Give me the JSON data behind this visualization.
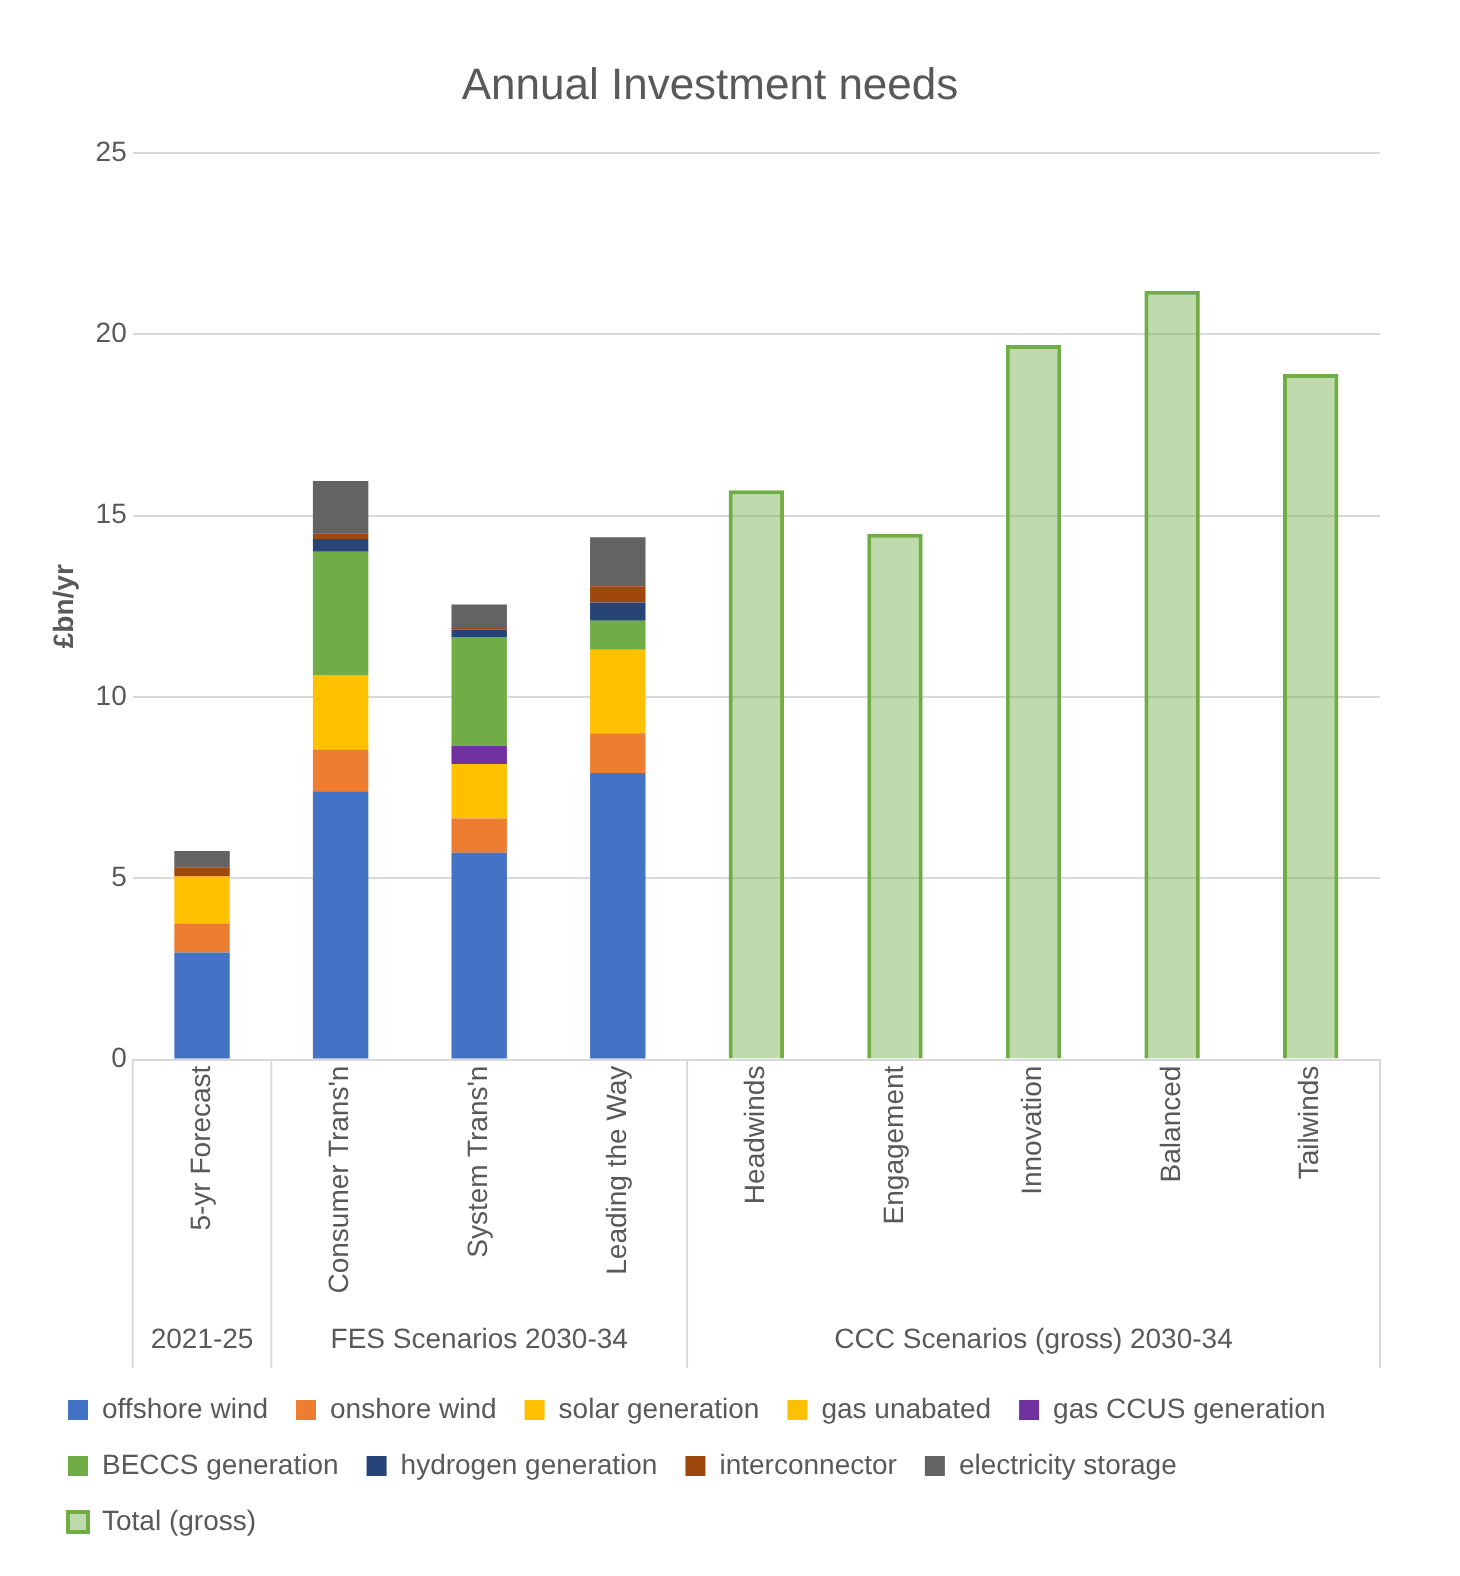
{
  "chart_data": {
    "type": "bar",
    "title": "Annual Investment needs",
    "ylabel": "£bn/yr",
    "categories": [
      "5-yr Forecast",
      "Consumer Trans'n",
      "System Trans'n",
      "Leading the Way",
      "Headwinds",
      "Engagement",
      "Innovation",
      "Balanced",
      "Tailwinds"
    ],
    "series": [
      {
        "name": "offshore wind",
        "color": "#4472c4",
        "values": [
          2.95,
          7.4,
          5.7,
          7.9,
          null,
          null,
          null,
          null,
          null
        ]
      },
      {
        "name": "onshore wind",
        "color": "#ed7d31",
        "values": [
          0.8,
          1.15,
          0.95,
          1.1,
          null,
          null,
          null,
          null,
          null
        ]
      },
      {
        "name": "solar generation",
        "color": "#ffc000",
        "values": [
          1.3,
          2.05,
          1.5,
          2.3,
          null,
          null,
          null,
          null,
          null
        ]
      },
      {
        "name": "gas unabated",
        "color": "#ffc000",
        "values": [
          null,
          null,
          null,
          null,
          null,
          null,
          null,
          null,
          null
        ]
      },
      {
        "name": "gas CCUS generation",
        "color": "#7030a0",
        "values": [
          null,
          null,
          0.5,
          null,
          null,
          null,
          null,
          null,
          null
        ]
      },
      {
        "name": "BECCS generation",
        "color": "#70ad47",
        "values": [
          null,
          3.4,
          3.0,
          0.8,
          null,
          null,
          null,
          null,
          null
        ]
      },
      {
        "name": "hydrogen generation",
        "color": "#264478",
        "values": [
          null,
          0.35,
          0.2,
          0.5,
          null,
          null,
          null,
          null,
          null
        ]
      },
      {
        "name": "interconnector",
        "color": "#9e480e",
        "values": [
          0.25,
          0.15,
          0.05,
          0.45,
          null,
          null,
          null,
          null,
          null
        ]
      },
      {
        "name": "electricity storage",
        "color": "#636363",
        "values": [
          0.45,
          1.45,
          0.65,
          1.35,
          null,
          null,
          null,
          null,
          null
        ]
      },
      {
        "name": "Total (gross)",
        "color": "#70ad47",
        "values": [
          null,
          null,
          null,
          null,
          15.7,
          14.5,
          19.7,
          21.2,
          18.9
        ]
      }
    ],
    "stacked": true,
    "ylim": [
      0,
      25
    ],
    "yticks": [
      0,
      5,
      10,
      15,
      20,
      25
    ],
    "grid": "y",
    "legend": "bottom",
    "annotations": [
      "2021-25",
      "FES Scenarios 2030-34",
      "CCC Scenarios (gross) 2030-34"
    ]
  }
}
